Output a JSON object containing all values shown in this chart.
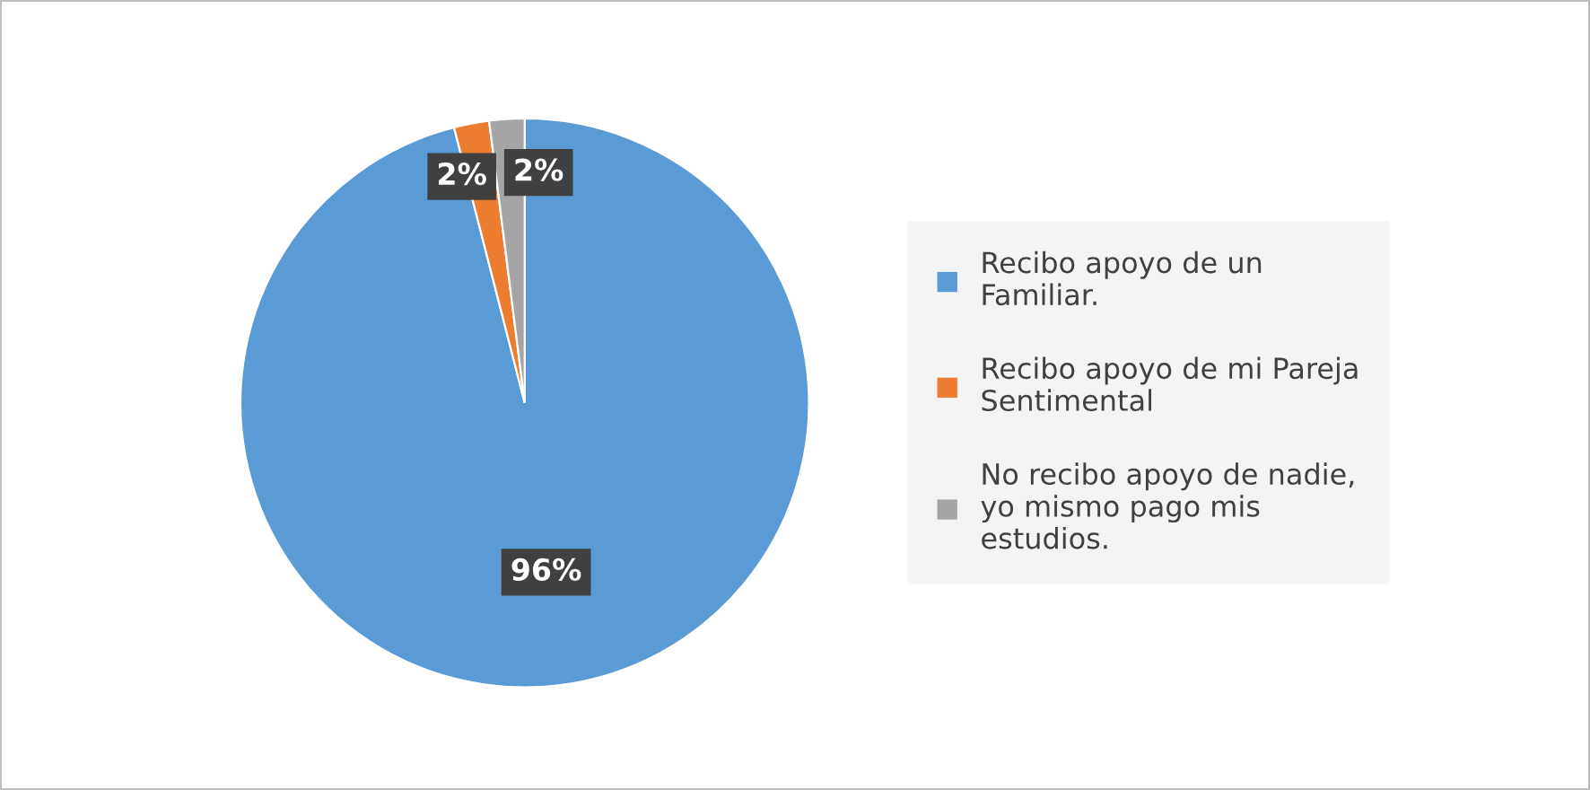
{
  "chart_data": {
    "type": "pie",
    "categories": [
      "Recibo apoyo de un Familiar.",
      "Recibo apoyo de mi Pareja Sentimental",
      "No recibo apoyo de nadie, yo mismo pago mis estudios."
    ],
    "values": [
      96,
      2,
      2
    ],
    "colors": [
      "#5b9bd5",
      "#ed7d31",
      "#a5a5a5"
    ],
    "value_labels": [
      "96%",
      "2%",
      "2%"
    ],
    "legend": "right"
  }
}
